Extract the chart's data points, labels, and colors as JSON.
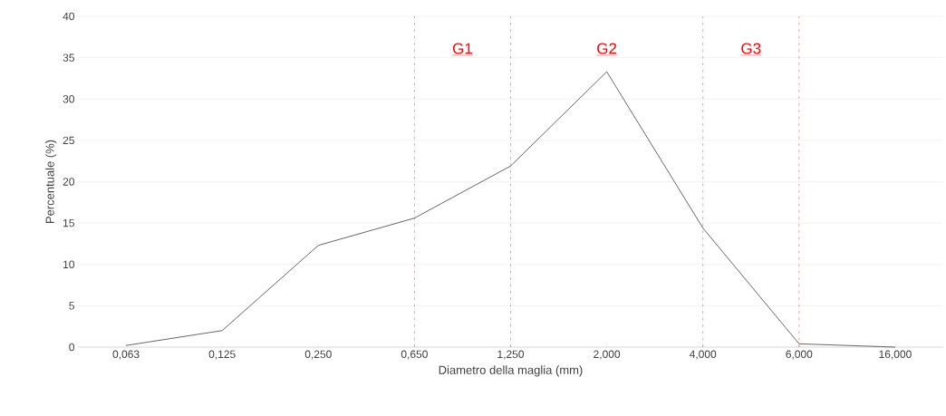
{
  "chart_data": {
    "type": "line",
    "xlabel": "Diametro della maglia (mm)",
    "ylabel": "Percentuale (%)",
    "categories": [
      "0,063",
      "0,125",
      "0,250",
      "0,650",
      "1,250",
      "2,000",
      "4,000",
      "6,000",
      "16,000"
    ],
    "values": [
      0.2,
      2.0,
      12.3,
      15.6,
      21.9,
      33.3,
      14.4,
      0.4,
      0.0
    ],
    "color": "#404040",
    "ylim": [
      0,
      40
    ],
    "yticks": [
      0,
      5,
      10,
      15,
      20,
      25,
      30,
      35,
      40
    ],
    "grid": "y",
    "marker": "none",
    "line_style": "solid",
    "ref_lines": [
      {
        "axis": "x",
        "value": "0,650",
        "color": "#ff0000",
        "line_style": "dashdot"
      },
      {
        "axis": "x",
        "value": "1,250",
        "color": "#ff0000",
        "line_style": "dashdot"
      },
      {
        "axis": "x",
        "value": "4,000",
        "color": "#ff0000",
        "line_style": "dashdot"
      },
      {
        "axis": "x",
        "value": "6,000",
        "color": "#ff0000",
        "line_style": "dashdot"
      }
    ],
    "annotations": [
      "G1",
      "G2",
      "G3"
    ]
  }
}
